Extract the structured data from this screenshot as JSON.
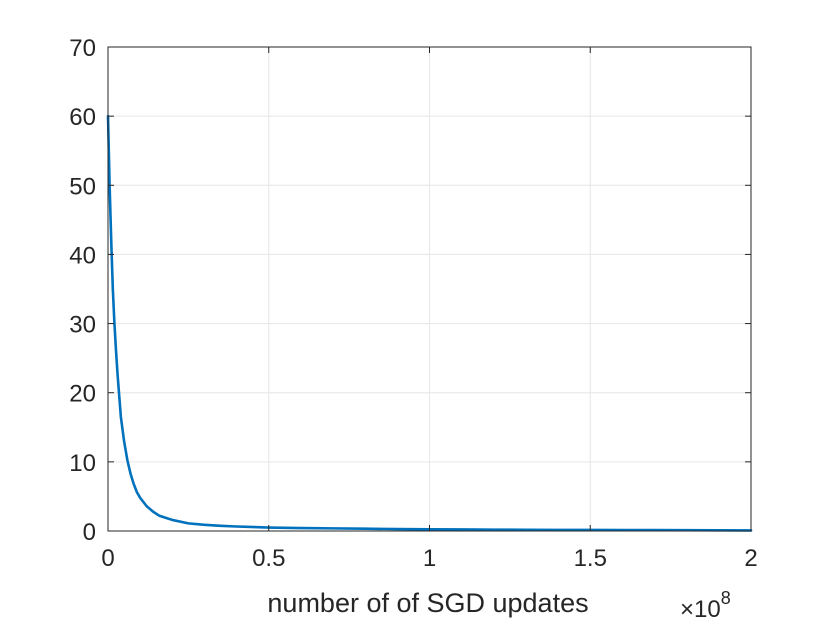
{
  "chart_data": {
    "type": "line",
    "title": "",
    "xlabel": "number of of SGD updates",
    "ylabel": "",
    "x_exponent_label": {
      "base": "×10",
      "power": "8"
    },
    "xlim": [
      0,
      2
    ],
    "ylim": [
      0,
      70
    ],
    "x_ticks": [
      "0",
      "0.5",
      "1",
      "1.5",
      "2"
    ],
    "y_ticks": [
      "0",
      "10",
      "20",
      "30",
      "40",
      "50",
      "60",
      "70"
    ],
    "grid": true,
    "line_color": "#0072bd",
    "series": [
      {
        "x": [
          0,
          0.005,
          0.01,
          0.015,
          0.02,
          0.025,
          0.03,
          0.035,
          0.04,
          0.05,
          0.06,
          0.07,
          0.08,
          0.09,
          0.1,
          0.12,
          0.14,
          0.16,
          0.18,
          0.2,
          0.25,
          0.3,
          0.35,
          0.4,
          0.5,
          0.6,
          0.7,
          0.8,
          0.9,
          1.0,
          1.1,
          1.2,
          1.3,
          1.4,
          1.5,
          1.6,
          1.7,
          1.8,
          1.9,
          2.0
        ],
        "y": [
          60,
          50,
          42,
          35,
          30,
          26,
          22.5,
          19.5,
          16.5,
          13,
          10.3,
          8.3,
          6.8,
          5.6,
          4.8,
          3.6,
          2.8,
          2.2,
          1.9,
          1.6,
          1.1,
          0.9,
          0.75,
          0.65,
          0.5,
          0.42,
          0.38,
          0.33,
          0.28,
          0.25,
          0.22,
          0.2,
          0.18,
          0.16,
          0.15,
          0.14,
          0.13,
          0.12,
          0.1,
          0.08
        ]
      }
    ]
  }
}
